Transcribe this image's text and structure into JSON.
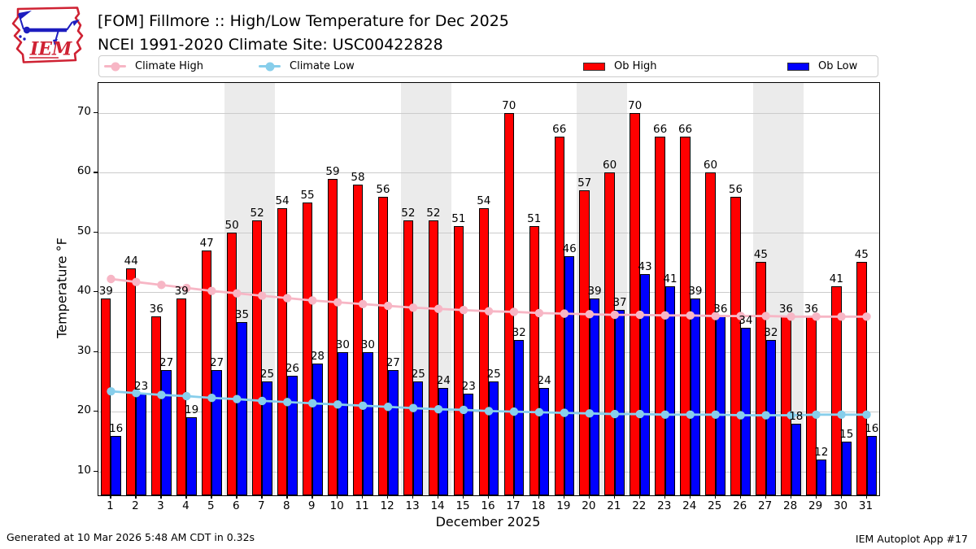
{
  "header": {
    "logo_text": "IEM",
    "title_line1": "[FOM] Fillmore :: High/Low Temperature for Dec 2025",
    "title_line2": "NCEI 1991-2020 Climate Site: USC00422828"
  },
  "legend": {
    "items": [
      {
        "label": "Climate High",
        "swatch": "line",
        "color": "#f7b6c5"
      },
      {
        "label": "Climate Low",
        "swatch": "line",
        "color": "#87ceeb"
      },
      {
        "label": "Ob High",
        "swatch": "rect",
        "color": "#ff0000"
      },
      {
        "label": "Ob Low",
        "swatch": "rect",
        "color": "#0000ff"
      }
    ]
  },
  "chart_data": {
    "type": "bar",
    "title": "[FOM] Fillmore :: High/Low Temperature for Dec 2025",
    "subtitle": "NCEI 1991-2020 Climate Site: USC00422828",
    "xlabel": "December 2025",
    "ylabel": "Temperature °F",
    "x": [
      1,
      2,
      3,
      4,
      5,
      6,
      7,
      8,
      9,
      10,
      11,
      12,
      13,
      14,
      15,
      16,
      17,
      18,
      19,
      20,
      21,
      22,
      23,
      24,
      25,
      26,
      27,
      28,
      29,
      30,
      31
    ],
    "series": [
      {
        "name": "Ob High",
        "type": "bar",
        "color": "#ff0000",
        "values": [
          39,
          44,
          36,
          39,
          47,
          50,
          52,
          54,
          55,
          59,
          58,
          56,
          52,
          52,
          51,
          54,
          70,
          51,
          66,
          57,
          60,
          70,
          66,
          66,
          60,
          56,
          45,
          36,
          36,
          41,
          45
        ]
      },
      {
        "name": "Ob Low",
        "type": "bar",
        "color": "#0000ff",
        "values": [
          16,
          23,
          27,
          19,
          27,
          35,
          25,
          26,
          28,
          30,
          30,
          27,
          25,
          24,
          23,
          25,
          32,
          24,
          46,
          39,
          37,
          43,
          41,
          39,
          36,
          34,
          32,
          18,
          12,
          15,
          16
        ]
      },
      {
        "name": "Climate High",
        "type": "line",
        "color": "#f7b6c5",
        "values": [
          42.2,
          41.7,
          41.2,
          40.7,
          40.2,
          39.8,
          39.4,
          39.0,
          38.6,
          38.3,
          38.0,
          37.7,
          37.4,
          37.2,
          37.0,
          36.8,
          36.7,
          36.5,
          36.4,
          36.3,
          36.2,
          36.2,
          36.1,
          36.1,
          36.0,
          36.0,
          36.0,
          35.9,
          35.9,
          35.9,
          35.9
        ]
      },
      {
        "name": "Climate Low",
        "type": "line",
        "color": "#87ceeb",
        "values": [
          23.4,
          23.1,
          22.8,
          22.6,
          22.3,
          22.1,
          21.8,
          21.6,
          21.4,
          21.2,
          21.0,
          20.8,
          20.6,
          20.4,
          20.3,
          20.1,
          20.0,
          19.9,
          19.8,
          19.7,
          19.6,
          19.6,
          19.5,
          19.5,
          19.5,
          19.4,
          19.4,
          19.4,
          19.5,
          19.5,
          19.5
        ]
      }
    ],
    "bar_value_labels": true,
    "ylim": [
      6,
      75
    ],
    "yticks": [
      10,
      20,
      30,
      40,
      50,
      60,
      70
    ],
    "xlim": [
      0.5,
      31.5
    ],
    "grid": "horizontal",
    "legend_position": "top",
    "weekend_bands": [
      [
        5.5,
        7.5
      ],
      [
        12.5,
        14.5
      ],
      [
        19.5,
        21.5
      ],
      [
        26.5,
        28.5
      ]
    ]
  },
  "footer": {
    "generated": "Generated at 10 Mar 2026 5:48 AM CDT in 0.32s",
    "app": "IEM Autoplot App #17"
  }
}
